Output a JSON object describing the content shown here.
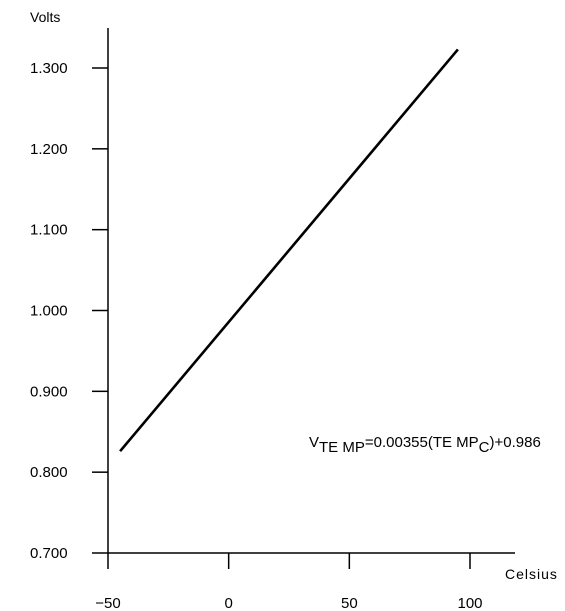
{
  "chart_data": {
    "type": "line",
    "title": "",
    "xlabel": "Celsius",
    "ylabel": "Volts",
    "xlim": [
      -50,
      100
    ],
    "ylim": [
      0.7,
      1.3
    ],
    "x_ticks": [
      -50,
      0,
      50,
      100
    ],
    "x_tick_labels": [
      "−50",
      "0",
      "50",
      "100"
    ],
    "y_ticks": [
      0.7,
      0.8,
      0.9,
      1.0,
      1.1,
      1.2,
      1.3
    ],
    "y_tick_labels": [
      "0.700",
      "0.800",
      "0.900",
      "1.000",
      "1.100",
      "1.200",
      "1.300"
    ],
    "series": [
      {
        "x": [
          -45,
          95
        ],
        "y": [
          0.826,
          1.323
        ]
      }
    ],
    "annotation": {
      "v": "V",
      "sub1": "TE MP",
      "mid": "=0.00355(TE MP",
      "sub2": "C",
      "end": ")+0.986"
    },
    "grid": false,
    "legend": "none"
  }
}
